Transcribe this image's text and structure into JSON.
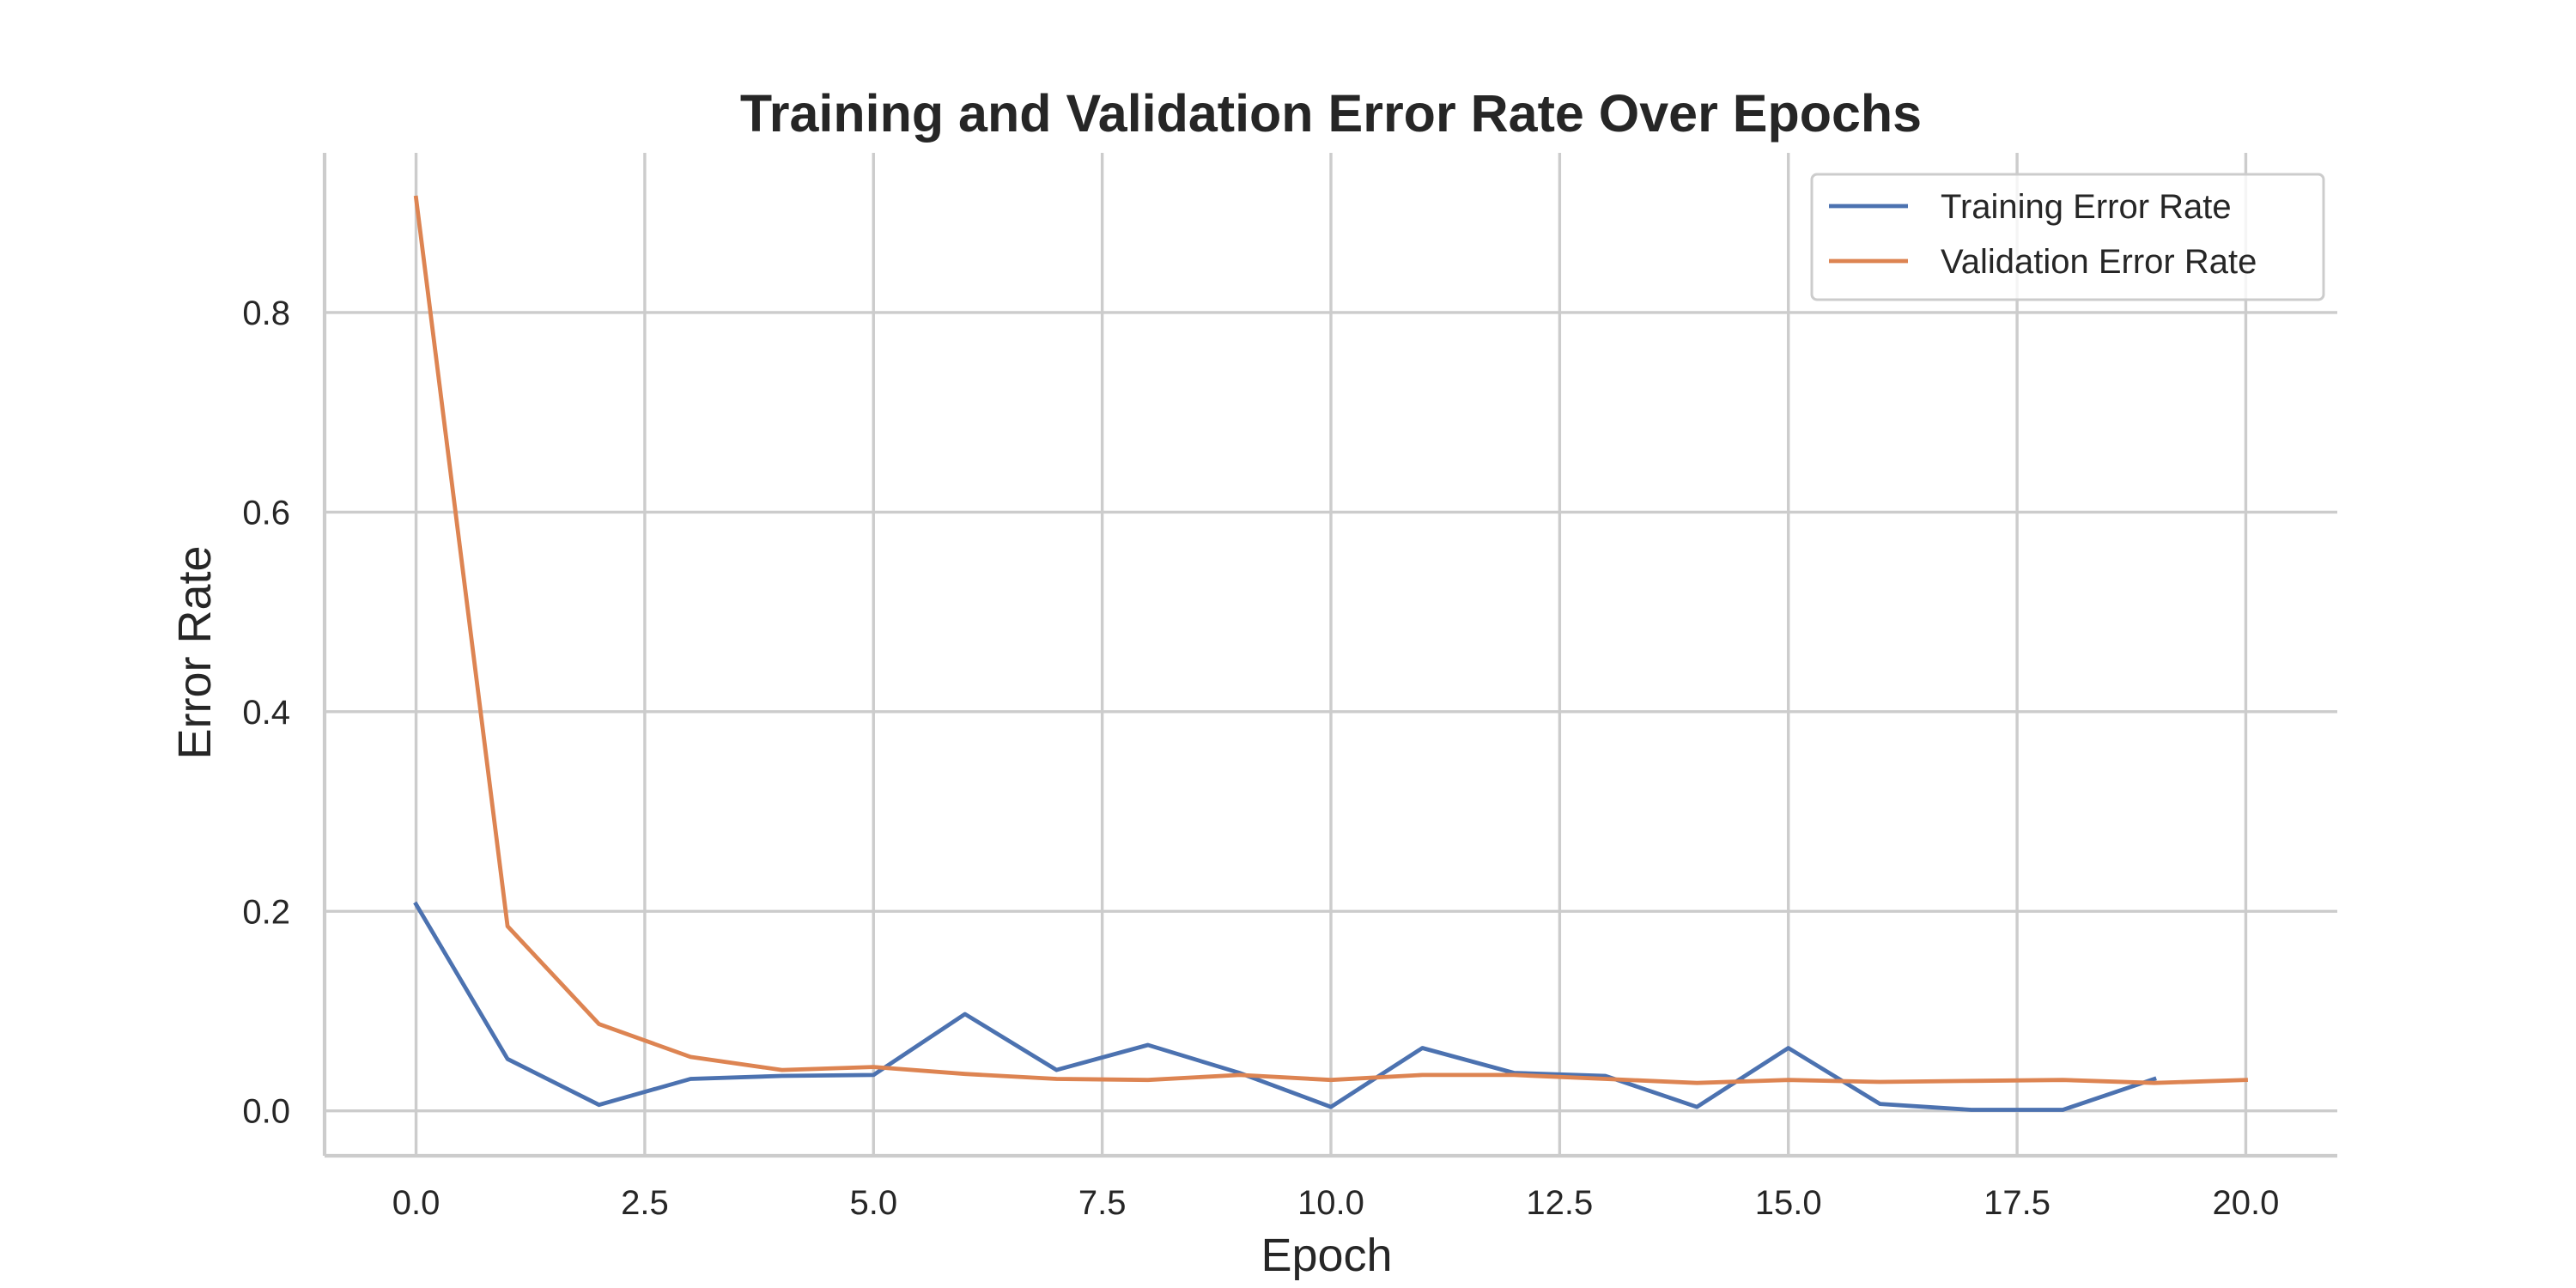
{
  "chart_data": {
    "type": "line",
    "title": "Training and Validation Error Rate Over Epochs",
    "xlabel": "Epoch",
    "ylabel": "Error Rate",
    "xlim": [
      -1.0,
      21.0
    ],
    "ylim": [
      -0.045,
      0.96
    ],
    "xticks": [
      0.0,
      2.5,
      5.0,
      7.5,
      10.0,
      12.5,
      15.0,
      17.5,
      20.0
    ],
    "xtick_labels": [
      "0.0",
      "2.5",
      "5.0",
      "7.5",
      "10.0",
      "12.5",
      "15.0",
      "17.5",
      "20.0"
    ],
    "yticks": [
      0.0,
      0.2,
      0.4,
      0.6,
      0.8
    ],
    "ytick_labels": [
      "0.0",
      "0.2",
      "0.4",
      "0.6",
      "0.8"
    ],
    "grid": true,
    "legend_position": "top-right",
    "series": [
      {
        "name": "Training Error Rate",
        "color": "#4c72b0",
        "x": [
          0,
          1,
          2,
          3,
          4,
          5,
          6,
          7,
          8,
          9,
          10,
          11,
          12,
          13,
          14,
          15,
          16,
          17,
          18,
          19
        ],
        "y": [
          0.207,
          0.052,
          0.006,
          0.032,
          0.035,
          0.036,
          0.097,
          0.041,
          0.066,
          0.038,
          0.004,
          0.063,
          0.038,
          0.035,
          0.004,
          0.063,
          0.007,
          0.001,
          0.001,
          0.032
        ]
      },
      {
        "name": "Validation Error Rate",
        "color": "#dd8452",
        "x": [
          0,
          1,
          2,
          3,
          4,
          5,
          6,
          7,
          8,
          9,
          10,
          11,
          12,
          13,
          14,
          15,
          16,
          17,
          18,
          19,
          20
        ],
        "y": [
          0.915,
          0.185,
          0.087,
          0.054,
          0.041,
          0.044,
          0.037,
          0.032,
          0.031,
          0.036,
          0.031,
          0.036,
          0.036,
          0.032,
          0.028,
          0.031,
          0.029,
          0.03,
          0.031,
          0.028,
          0.031
        ]
      }
    ]
  }
}
